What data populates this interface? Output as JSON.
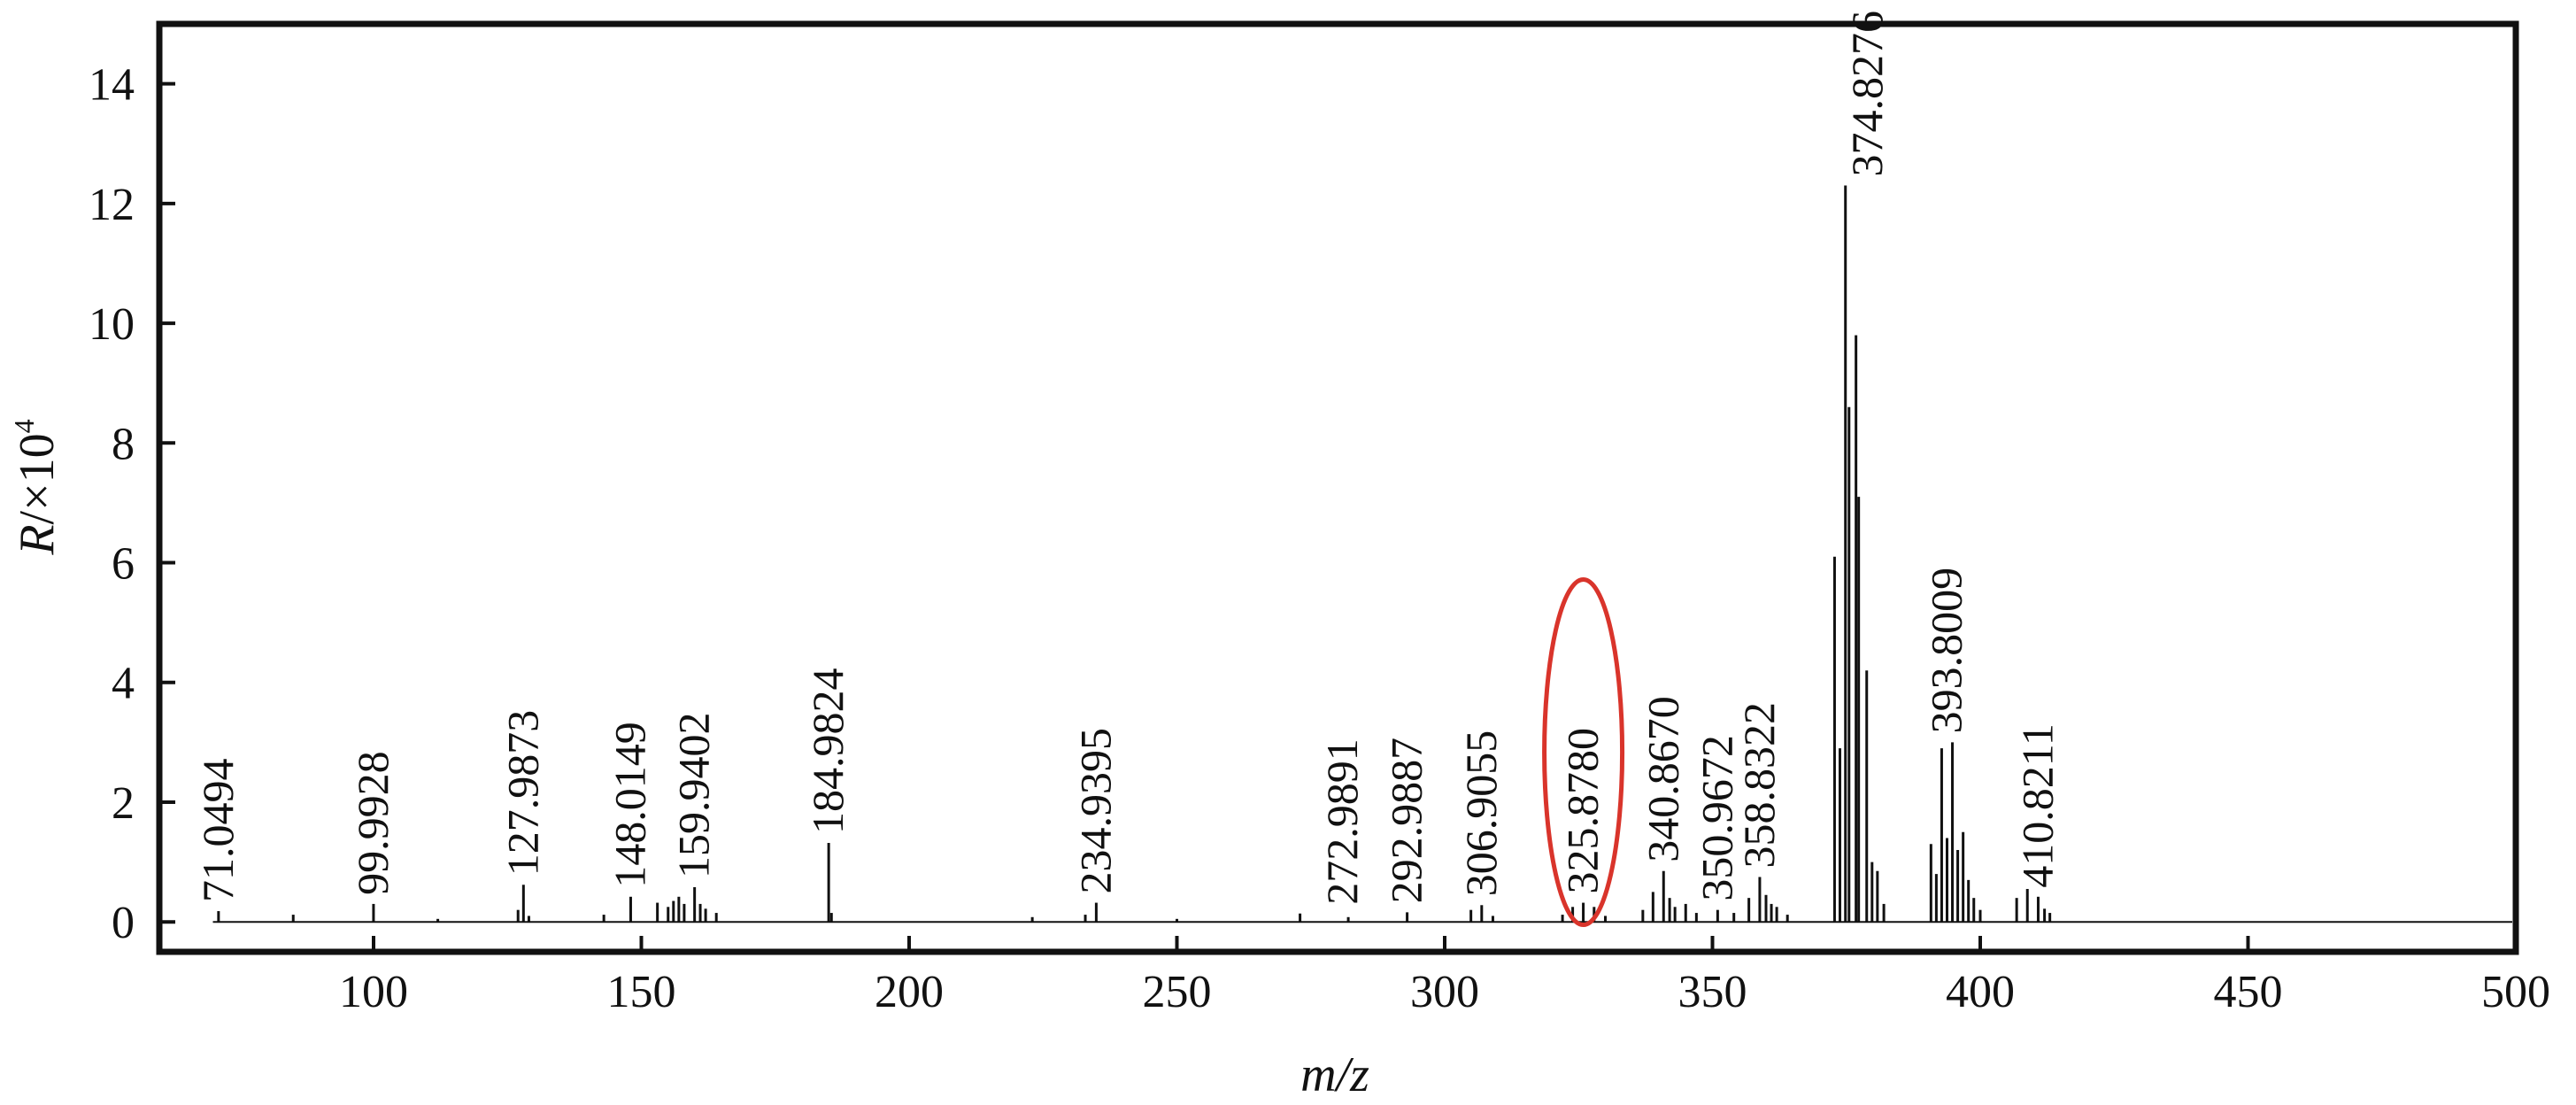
{
  "chart_data": {
    "type": "line",
    "xlabel": "m/z",
    "ylabel": {
      "prefix": "R",
      "suffix": "/×10",
      "exponent": "4"
    },
    "xlim": [
      60,
      500
    ],
    "ylim": [
      -0.5,
      15
    ],
    "xticks": [
      100,
      150,
      200,
      250,
      300,
      350,
      400,
      450,
      500
    ],
    "yticks": [
      0,
      2,
      4,
      6,
      8,
      10,
      12,
      14
    ],
    "grid": false,
    "legend": "none",
    "line_color": "#111111",
    "highlight_color": "#d9342b",
    "peaks": [
      {
        "mz": 71.05,
        "r": 0.18
      },
      {
        "mz": 85.0,
        "r": 0.12
      },
      {
        "mz": 99.99,
        "r": 0.3
      },
      {
        "mz": 112.0,
        "r": 0.05
      },
      {
        "mz": 126.98,
        "r": 0.2
      },
      {
        "mz": 127.99,
        "r": 0.62
      },
      {
        "mz": 129.0,
        "r": 0.1
      },
      {
        "mz": 143.0,
        "r": 0.12
      },
      {
        "mz": 148.01,
        "r": 0.42
      },
      {
        "mz": 153.0,
        "r": 0.32
      },
      {
        "mz": 155.0,
        "r": 0.25
      },
      {
        "mz": 156.0,
        "r": 0.35
      },
      {
        "mz": 157.0,
        "r": 0.42
      },
      {
        "mz": 158.0,
        "r": 0.3
      },
      {
        "mz": 159.94,
        "r": 0.58
      },
      {
        "mz": 161.0,
        "r": 0.3
      },
      {
        "mz": 162.0,
        "r": 0.22
      },
      {
        "mz": 164.0,
        "r": 0.15
      },
      {
        "mz": 184.98,
        "r": 1.32
      },
      {
        "mz": 185.5,
        "r": 0.15
      },
      {
        "mz": 223.0,
        "r": 0.08
      },
      {
        "mz": 232.9,
        "r": 0.12
      },
      {
        "mz": 234.94,
        "r": 0.32
      },
      {
        "mz": 250.0,
        "r": 0.05
      },
      {
        "mz": 272.99,
        "r": 0.14
      },
      {
        "mz": 282.0,
        "r": 0.08
      },
      {
        "mz": 292.99,
        "r": 0.16
      },
      {
        "mz": 304.9,
        "r": 0.2
      },
      {
        "mz": 306.91,
        "r": 0.28
      },
      {
        "mz": 309.0,
        "r": 0.1
      },
      {
        "mz": 322.0,
        "r": 0.12
      },
      {
        "mz": 323.9,
        "r": 0.25
      },
      {
        "mz": 325.88,
        "r": 0.32
      },
      {
        "mz": 327.9,
        "r": 0.25
      },
      {
        "mz": 330.0,
        "r": 0.1
      },
      {
        "mz": 337.0,
        "r": 0.2
      },
      {
        "mz": 338.9,
        "r": 0.5
      },
      {
        "mz": 340.87,
        "r": 0.85
      },
      {
        "mz": 342.0,
        "r": 0.4
      },
      {
        "mz": 343.0,
        "r": 0.25
      },
      {
        "mz": 345.0,
        "r": 0.3
      },
      {
        "mz": 347.0,
        "r": 0.15
      },
      {
        "mz": 350.97,
        "r": 0.2
      },
      {
        "mz": 354.0,
        "r": 0.15
      },
      {
        "mz": 356.8,
        "r": 0.4
      },
      {
        "mz": 358.83,
        "r": 0.75
      },
      {
        "mz": 360.0,
        "r": 0.45
      },
      {
        "mz": 361.0,
        "r": 0.3
      },
      {
        "mz": 362.0,
        "r": 0.25
      },
      {
        "mz": 364.0,
        "r": 0.12
      },
      {
        "mz": 372.8,
        "r": 6.1
      },
      {
        "mz": 373.8,
        "r": 2.9
      },
      {
        "mz": 374.83,
        "r": 12.3
      },
      {
        "mz": 375.5,
        "r": 8.6
      },
      {
        "mz": 376.8,
        "r": 9.8
      },
      {
        "mz": 377.3,
        "r": 7.1
      },
      {
        "mz": 378.8,
        "r": 4.2
      },
      {
        "mz": 379.8,
        "r": 1.0
      },
      {
        "mz": 380.8,
        "r": 0.85
      },
      {
        "mz": 382.0,
        "r": 0.3
      },
      {
        "mz": 390.8,
        "r": 1.3
      },
      {
        "mz": 391.8,
        "r": 0.8
      },
      {
        "mz": 392.8,
        "r": 2.9
      },
      {
        "mz": 393.8,
        "r": 1.4
      },
      {
        "mz": 394.8,
        "r": 3.0
      },
      {
        "mz": 395.8,
        "r": 1.2
      },
      {
        "mz": 396.8,
        "r": 1.5
      },
      {
        "mz": 397.8,
        "r": 0.7
      },
      {
        "mz": 398.8,
        "r": 0.4
      },
      {
        "mz": 400.0,
        "r": 0.2
      },
      {
        "mz": 406.8,
        "r": 0.4
      },
      {
        "mz": 408.8,
        "r": 0.55
      },
      {
        "mz": 410.82,
        "r": 0.42
      },
      {
        "mz": 412.0,
        "r": 0.22
      },
      {
        "mz": 413.0,
        "r": 0.15
      }
    ],
    "annotations": [
      {
        "text": "71.0494",
        "mz": 71.05,
        "r": 0.18
      },
      {
        "text": "99.9928",
        "mz": 99.99,
        "r": 0.3
      },
      {
        "text": "127.9873",
        "mz": 127.99,
        "r": 0.62
      },
      {
        "text": "148.0149",
        "mz": 148.01,
        "r": 0.42
      },
      {
        "text": "159.9402",
        "mz": 159.94,
        "r": 0.58
      },
      {
        "text": "184.9824",
        "mz": 184.98,
        "r": 1.32
      },
      {
        "text": "234.9395",
        "mz": 234.94,
        "r": 0.32
      },
      {
        "text": "272.9891",
        "mz": 281.0,
        "r": 0.14
      },
      {
        "text": "292.9887",
        "mz": 292.99,
        "r": 0.16
      },
      {
        "text": "306.9055",
        "mz": 306.91,
        "r": 0.28
      },
      {
        "text": "325.8780",
        "mz": 325.88,
        "r": 0.32,
        "highlighted": true
      },
      {
        "text": "340.8670",
        "mz": 340.87,
        "r": 0.85
      },
      {
        "text": "350.9672",
        "mz": 350.97,
        "r": 0.2
      },
      {
        "text": "358.8322",
        "mz": 358.83,
        "r": 0.75
      },
      {
        "text": "374.8276",
        "mz": 379.0,
        "r": 12.3
      },
      {
        "text": "393.8009",
        "mz": 393.8,
        "r": 3.0
      },
      {
        "text": "410.8211",
        "mz": 410.82,
        "r": 0.42
      }
    ]
  }
}
